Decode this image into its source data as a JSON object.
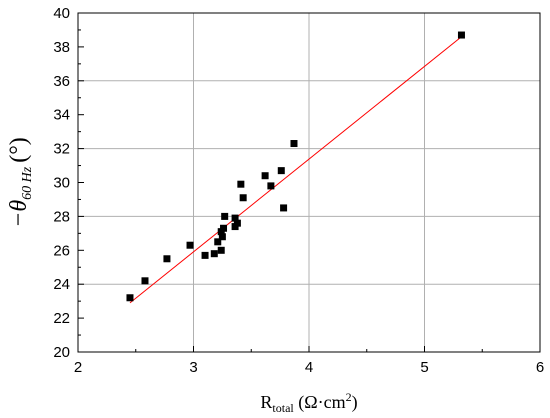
{
  "chart_data": {
    "type": "scatter",
    "xlabel": {
      "main": "R",
      "sub": "total",
      "unit_open": " (Ω·cm",
      "unit_sup": "2",
      "unit_close": ")"
    },
    "ylabel": {
      "prefix": "−θ",
      "sub": "60 Hz",
      "unit": "(°)"
    },
    "xlim": [
      2,
      6
    ],
    "ylim": [
      20,
      40
    ],
    "xticks": [
      "2",
      "3",
      "4",
      "5",
      "6"
    ],
    "yticks": [
      "20",
      "22",
      "24",
      "26",
      "28",
      "30",
      "32",
      "34",
      "36",
      "38",
      "40"
    ],
    "grid": true,
    "series": [
      {
        "points": [
          [
            2.45,
            23.2
          ],
          [
            2.58,
            24.2
          ],
          [
            2.77,
            25.5
          ],
          [
            2.97,
            26.3
          ],
          [
            3.1,
            25.7
          ],
          [
            3.18,
            25.8
          ],
          [
            3.21,
            26.5
          ],
          [
            3.24,
            26.0
          ],
          [
            3.24,
            27.1
          ],
          [
            3.25,
            26.8
          ],
          [
            3.26,
            27.3
          ],
          [
            3.27,
            28.0
          ],
          [
            3.36,
            27.9
          ],
          [
            3.36,
            27.4
          ],
          [
            3.38,
            27.6
          ],
          [
            3.41,
            29.9
          ],
          [
            3.43,
            29.1
          ],
          [
            3.62,
            30.4
          ],
          [
            3.67,
            29.8
          ],
          [
            3.76,
            30.7
          ],
          [
            3.78,
            28.5
          ],
          [
            3.87,
            32.3
          ],
          [
            5.32,
            38.7
          ]
        ],
        "color": "#000000"
      }
    ],
    "fit_line": {
      "x": [
        2.45,
        5.32
      ],
      "y": [
        22.9,
        38.6
      ],
      "color": "#ff0000"
    }
  }
}
